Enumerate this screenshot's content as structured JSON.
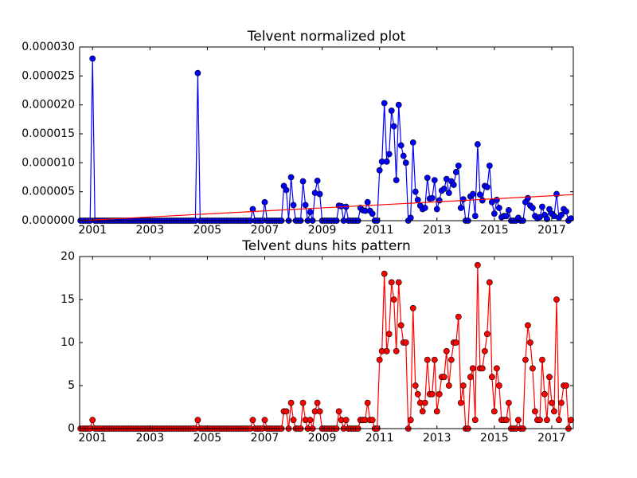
{
  "chart_data": [
    {
      "type": "line",
      "title": "Telvent normalized plot",
      "x": [
        2000.583,
        2000.667,
        2000.75,
        2000.833,
        2000.917,
        2001,
        2001.083,
        2001.167,
        2001.25,
        2001.333,
        2001.417,
        2001.5,
        2001.583,
        2001.667,
        2001.75,
        2001.833,
        2001.917,
        2002,
        2002.083,
        2002.167,
        2002.25,
        2002.333,
        2002.417,
        2002.5,
        2002.583,
        2002.667,
        2002.75,
        2002.833,
        2002.917,
        2003,
        2003.083,
        2003.167,
        2003.25,
        2003.333,
        2003.417,
        2003.5,
        2003.583,
        2003.667,
        2003.75,
        2003.833,
        2003.917,
        2004,
        2004.083,
        2004.167,
        2004.25,
        2004.333,
        2004.417,
        2004.5,
        2004.583,
        2004.667,
        2004.75,
        2004.833,
        2004.917,
        2005,
        2005.083,
        2005.167,
        2005.25,
        2005.333,
        2005.417,
        2005.5,
        2005.583,
        2005.667,
        2005.75,
        2005.833,
        2005.917,
        2006,
        2006.083,
        2006.167,
        2006.25,
        2006.333,
        2006.417,
        2006.5,
        2006.583,
        2006.667,
        2006.75,
        2006.833,
        2006.917,
        2007,
        2007.083,
        2007.167,
        2007.25,
        2007.333,
        2007.417,
        2007.5,
        2007.583,
        2007.667,
        2007.75,
        2007.833,
        2007.917,
        2008,
        2008.083,
        2008.167,
        2008.25,
        2008.333,
        2008.417,
        2008.5,
        2008.583,
        2008.667,
        2008.75,
        2008.833,
        2008.917,
        2009,
        2009.083,
        2009.167,
        2009.25,
        2009.333,
        2009.417,
        2009.5,
        2009.583,
        2009.667,
        2009.75,
        2009.833,
        2009.917,
        2010,
        2010.083,
        2010.167,
        2010.25,
        2010.333,
        2010.417,
        2010.5,
        2010.583,
        2010.667,
        2010.75,
        2010.833,
        2010.917,
        2011,
        2011.083,
        2011.167,
        2011.25,
        2011.333,
        2011.417,
        2011.5,
        2011.583,
        2011.667,
        2011.75,
        2011.833,
        2011.917,
        2012,
        2012.083,
        2012.167,
        2012.25,
        2012.333,
        2012.417,
        2012.5,
        2012.583,
        2012.667,
        2012.75,
        2012.833,
        2012.917,
        2013,
        2013.083,
        2013.167,
        2013.25,
        2013.333,
        2013.417,
        2013.5,
        2013.583,
        2013.667,
        2013.75,
        2013.833,
        2013.917,
        2014,
        2014.083,
        2014.167,
        2014.25,
        2014.333,
        2014.417,
        2014.5,
        2014.583,
        2014.667,
        2014.75,
        2014.833,
        2014.917,
        2015,
        2015.083,
        2015.167,
        2015.25,
        2015.333,
        2015.417,
        2015.5,
        2015.583,
        2015.667,
        2015.75,
        2015.833,
        2015.917,
        2016,
        2016.083,
        2016.167,
        2016.25,
        2016.333,
        2016.417,
        2016.5,
        2016.583,
        2016.667,
        2016.75,
        2016.833,
        2016.917,
        2017,
        2017.083,
        2017.167,
        2017.25,
        2017.333,
        2017.417,
        2017.5,
        2017.583,
        2017.667
      ],
      "series": [
        {
          "color": "#0000ff",
          "marker": true,
          "values": [
            0,
            0,
            0,
            0,
            0,
            2.8e-05,
            0,
            0,
            0,
            0,
            0,
            0,
            0,
            0,
            0,
            0,
            0,
            0,
            0,
            0,
            0,
            0,
            0,
            0,
            0,
            0,
            0,
            0,
            0,
            0,
            0,
            0,
            0,
            0,
            0,
            0,
            0,
            0,
            0,
            0,
            0,
            0,
            0,
            0,
            0,
            0,
            0,
            0,
            0,
            2.55e-05,
            0,
            0,
            0,
            0,
            0,
            0,
            0,
            0,
            0,
            0,
            0,
            0,
            0,
            0,
            0,
            0,
            0,
            0,
            0,
            0,
            0,
            0,
            2e-06,
            0,
            0,
            0,
            0,
            3.2e-06,
            0,
            0,
            0,
            0,
            0,
            0,
            0,
            6e-06,
            5.3e-06,
            0,
            7.5e-06,
            2.7e-06,
            0,
            0,
            0,
            6.8e-06,
            2.7e-06,
            0,
            1.5e-06,
            0,
            4.8e-06,
            6.9e-06,
            4.6e-06,
            0,
            0,
            0,
            0,
            0,
            0,
            0,
            2.6e-06,
            2.5e-06,
            0,
            2.4e-06,
            0,
            0,
            0,
            0,
            0,
            2.2e-06,
            1.8e-06,
            1.7e-06,
            3.2e-06,
            1.7e-06,
            1.2e-06,
            0,
            0,
            8.7e-06,
            1.02e-05,
            2.03e-05,
            1.02e-05,
            1.15e-05,
            1.9e-05,
            1.63e-05,
            7e-06,
            2e-05,
            1.3e-05,
            1.12e-05,
            1e-05,
            0,
            5e-07,
            1.35e-05,
            5e-06,
            3.6e-06,
            2.6e-06,
            2e-06,
            2.2e-06,
            7.4e-06,
            3.8e-06,
            3.9e-06,
            7e-06,
            2e-06,
            3.5e-06,
            5.2e-06,
            5.5e-06,
            7.2e-06,
            4.8e-06,
            6.8e-06,
            6.2e-06,
            8.4e-06,
            9.5e-06,
            2.2e-06,
            3.7e-06,
            0,
            0,
            4.2e-06,
            4.6e-06,
            8e-07,
            1.32e-05,
            4.5e-06,
            3.5e-06,
            6e-06,
            5.8e-06,
            9.5e-06,
            3.2e-06,
            1.2e-06,
            3.6e-06,
            2.2e-06,
            6e-07,
            8e-07,
            8e-07,
            1.8e-06,
            0,
            0,
            0,
            5e-07,
            0,
            0,
            3.2e-06,
            3.9e-06,
            2.6e-06,
            2.2e-06,
            8e-07,
            4e-07,
            6e-07,
            2.4e-06,
            1e-06,
            3e-07,
            2e-06,
            1.2e-06,
            8e-07,
            4.6e-06,
            5e-07,
            1e-06,
            2e-06,
            1.6e-06,
            0,
            4e-07
          ]
        },
        {
          "color": "#ff0000",
          "marker": false,
          "x": [
            2000.55,
            2017.75
          ],
          "values": [
            0,
            4.5e-06
          ]
        }
      ],
      "xlim": [
        2000.55,
        2017.75
      ],
      "xticks": [
        2001,
        2003,
        2005,
        2007,
        2009,
        2011,
        2013,
        2015,
        2017
      ],
      "ylim": [
        0,
        3e-05
      ],
      "yticks": [
        {
          "value": 0,
          "label": "0.000000"
        },
        {
          "value": 5e-06,
          "label": "0.000005"
        },
        {
          "value": 1e-05,
          "label": "0.000010"
        },
        {
          "value": 1.5e-05,
          "label": "0.000015"
        },
        {
          "value": 2e-05,
          "label": "0.000020"
        },
        {
          "value": 2.5e-05,
          "label": "0.000025"
        },
        {
          "value": 3e-05,
          "label": "0.000030"
        }
      ]
    },
    {
      "type": "line",
      "title": "Telvent duns hits pattern",
      "x": [
        2000.583,
        2000.667,
        2000.75,
        2000.833,
        2000.917,
        2001,
        2001.083,
        2001.167,
        2001.25,
        2001.333,
        2001.417,
        2001.5,
        2001.583,
        2001.667,
        2001.75,
        2001.833,
        2001.917,
        2002,
        2002.083,
        2002.167,
        2002.25,
        2002.333,
        2002.417,
        2002.5,
        2002.583,
        2002.667,
        2002.75,
        2002.833,
        2002.917,
        2003,
        2003.083,
        2003.167,
        2003.25,
        2003.333,
        2003.417,
        2003.5,
        2003.583,
        2003.667,
        2003.75,
        2003.833,
        2003.917,
        2004,
        2004.083,
        2004.167,
        2004.25,
        2004.333,
        2004.417,
        2004.5,
        2004.583,
        2004.667,
        2004.75,
        2004.833,
        2004.917,
        2005,
        2005.083,
        2005.167,
        2005.25,
        2005.333,
        2005.417,
        2005.5,
        2005.583,
        2005.667,
        2005.75,
        2005.833,
        2005.917,
        2006,
        2006.083,
        2006.167,
        2006.25,
        2006.333,
        2006.417,
        2006.5,
        2006.583,
        2006.667,
        2006.75,
        2006.833,
        2006.917,
        2007,
        2007.083,
        2007.167,
        2007.25,
        2007.333,
        2007.417,
        2007.5,
        2007.583,
        2007.667,
        2007.75,
        2007.833,
        2007.917,
        2008,
        2008.083,
        2008.167,
        2008.25,
        2008.333,
        2008.417,
        2008.5,
        2008.583,
        2008.667,
        2008.75,
        2008.833,
        2008.917,
        2009,
        2009.083,
        2009.167,
        2009.25,
        2009.333,
        2009.417,
        2009.5,
        2009.583,
        2009.667,
        2009.75,
        2009.833,
        2009.917,
        2010,
        2010.083,
        2010.167,
        2010.25,
        2010.333,
        2010.417,
        2010.5,
        2010.583,
        2010.667,
        2010.75,
        2010.833,
        2010.917,
        2011,
        2011.083,
        2011.167,
        2011.25,
        2011.333,
        2011.417,
        2011.5,
        2011.583,
        2011.667,
        2011.75,
        2011.833,
        2011.917,
        2012,
        2012.083,
        2012.167,
        2012.25,
        2012.333,
        2012.417,
        2012.5,
        2012.583,
        2012.667,
        2012.75,
        2012.833,
        2012.917,
        2013,
        2013.083,
        2013.167,
        2013.25,
        2013.333,
        2013.417,
        2013.5,
        2013.583,
        2013.667,
        2013.75,
        2013.833,
        2013.917,
        2014,
        2014.083,
        2014.167,
        2014.25,
        2014.333,
        2014.417,
        2014.5,
        2014.583,
        2014.667,
        2014.75,
        2014.833,
        2014.917,
        2015,
        2015.083,
        2015.167,
        2015.25,
        2015.333,
        2015.417,
        2015.5,
        2015.583,
        2015.667,
        2015.75,
        2015.833,
        2015.917,
        2016,
        2016.083,
        2016.167,
        2016.25,
        2016.333,
        2016.417,
        2016.5,
        2016.583,
        2016.667,
        2016.75,
        2016.833,
        2016.917,
        2017,
        2017.083,
        2017.167,
        2017.25,
        2017.333,
        2017.417,
        2017.5,
        2017.583,
        2017.667
      ],
      "series": [
        {
          "color": "#ff0000",
          "marker": true,
          "values": [
            0,
            0,
            0,
            0,
            0,
            1,
            0,
            0,
            0,
            0,
            0,
            0,
            0,
            0,
            0,
            0,
            0,
            0,
            0,
            0,
            0,
            0,
            0,
            0,
            0,
            0,
            0,
            0,
            0,
            0,
            0,
            0,
            0,
            0,
            0,
            0,
            0,
            0,
            0,
            0,
            0,
            0,
            0,
            0,
            0,
            0,
            0,
            0,
            0,
            1,
            0,
            0,
            0,
            0,
            0,
            0,
            0,
            0,
            0,
            0,
            0,
            0,
            0,
            0,
            0,
            0,
            0,
            0,
            0,
            0,
            0,
            0,
            1,
            0,
            0,
            0,
            0,
            1,
            0,
            0,
            0,
            0,
            0,
            0,
            0,
            2,
            2,
            0,
            3,
            1,
            0,
            0,
            0,
            3,
            1,
            0,
            1,
            0,
            2,
            3,
            2,
            0,
            0,
            0,
            0,
            0,
            0,
            0,
            2,
            1,
            0,
            1,
            0,
            0,
            0,
            0,
            0,
            1,
            1,
            1,
            3,
            1,
            1,
            0,
            0,
            8,
            9,
            18,
            9,
            11,
            17,
            15,
            9,
            17,
            12,
            10,
            10,
            0,
            1,
            14,
            5,
            4,
            3,
            2,
            3,
            8,
            4,
            4,
            8,
            2,
            4,
            6,
            6,
            9,
            5,
            8,
            10,
            10,
            13,
            3,
            5,
            0,
            0,
            6,
            7,
            1,
            19,
            7,
            7,
            9,
            11,
            17,
            6,
            2,
            7,
            5,
            1,
            1,
            1,
            3,
            0,
            0,
            0,
            1,
            0,
            0,
            8,
            12,
            10,
            7,
            2,
            1,
            1,
            8,
            4,
            1,
            6,
            3,
            2,
            15,
            1,
            3,
            5,
            5,
            0,
            1
          ]
        }
      ],
      "xlim": [
        2000.55,
        2017.75
      ],
      "xticks": [
        2001,
        2003,
        2005,
        2007,
        2009,
        2011,
        2013,
        2015,
        2017
      ],
      "ylim": [
        0,
        20
      ],
      "yticks": [
        0,
        5,
        10,
        15,
        20
      ]
    }
  ]
}
